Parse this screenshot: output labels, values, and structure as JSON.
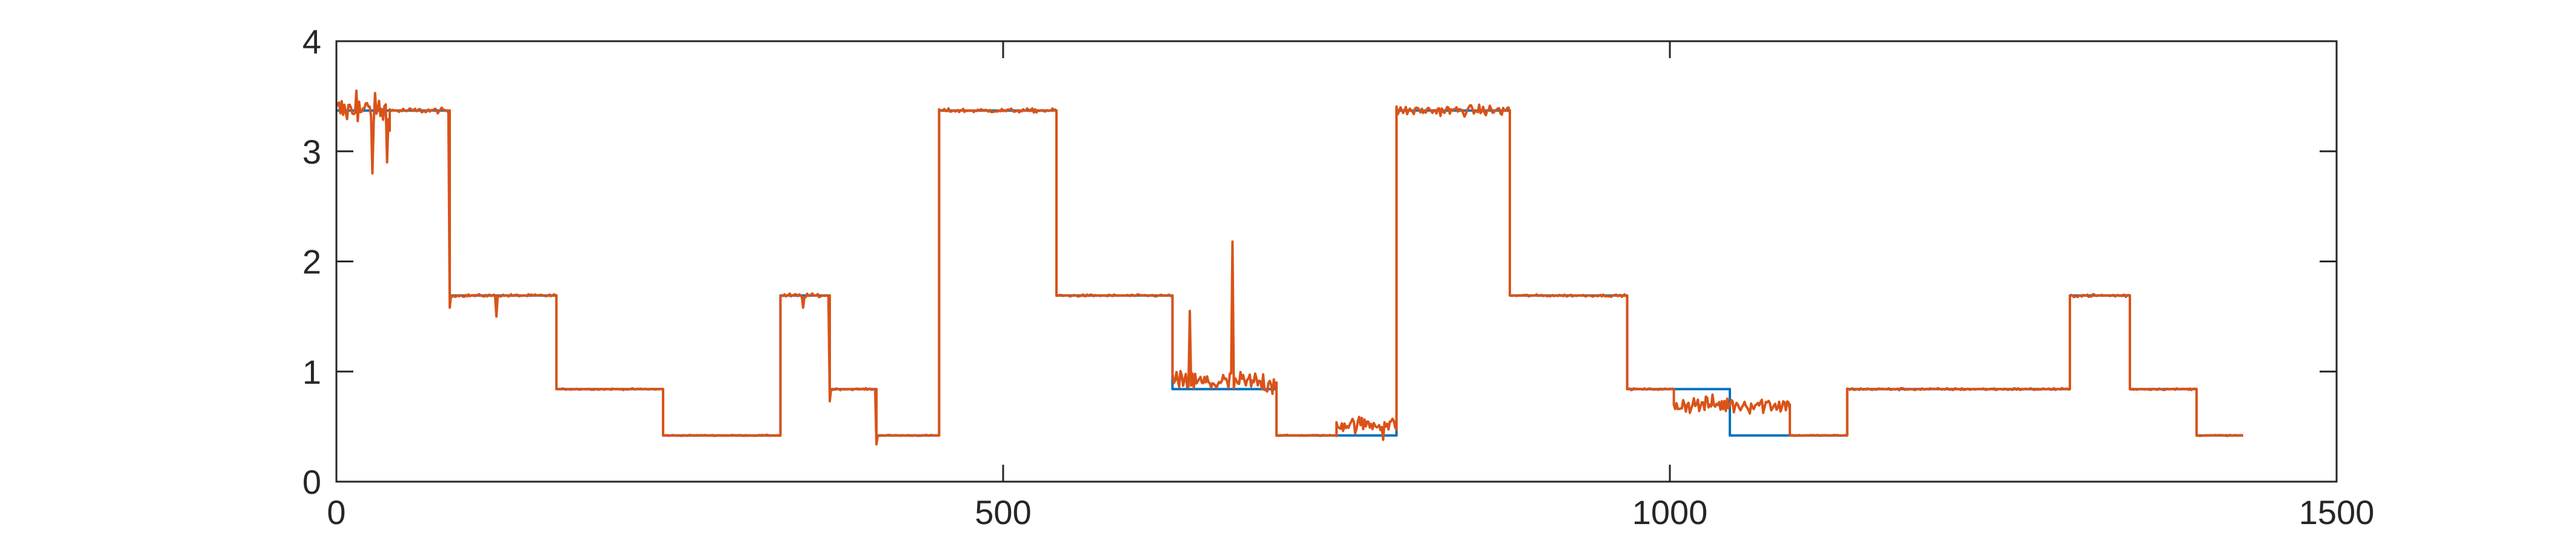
{
  "chart_data": {
    "type": "line",
    "title": "",
    "xlabel": "",
    "ylabel": "",
    "xlim": [
      0,
      1500
    ],
    "ylim": [
      0,
      4
    ],
    "x_ticks": [
      0,
      500,
      1000,
      1500
    ],
    "y_ticks": [
      0,
      1,
      2,
      3,
      4
    ],
    "x_tick_labels": [
      "0",
      "500",
      "1000",
      "1500"
    ],
    "y_tick_labels": [
      "0",
      "1",
      "2",
      "3",
      "4"
    ],
    "grid": false,
    "legend": "none",
    "box": true,
    "series": [
      {
        "color": "#0072BD",
        "style": "step",
        "x": [
          0,
          85,
          85,
          165,
          165,
          245,
          245,
          333,
          333,
          370,
          370,
          405,
          405,
          452,
          452,
          540,
          540,
          627,
          627,
          705,
          705,
          750,
          750,
          795,
          795,
          880,
          880,
          968,
          968,
          1045,
          1045,
          1090,
          1090,
          1133,
          1133,
          1300,
          1300,
          1345,
          1345,
          1395,
          1395,
          1430
        ],
        "y": [
          3.37,
          3.37,
          1.69,
          1.69,
          0.84,
          0.84,
          0.42,
          0.42,
          1.69,
          1.69,
          0.84,
          0.84,
          0.42,
          0.42,
          3.37,
          3.37,
          1.69,
          1.69,
          0.84,
          0.84,
          0.42,
          0.42,
          0.42,
          0.42,
          3.37,
          3.37,
          1.69,
          1.69,
          0.84,
          0.84,
          0.42,
          0.42,
          0.42,
          0.42,
          0.84,
          0.84,
          1.69,
          1.69,
          0.84,
          0.84,
          0.42,
          0.42
        ]
      },
      {
        "color": "#D95319",
        "style": "noisy",
        "segments": [
          {
            "x0": 0,
            "x1": 40,
            "level": 3.37,
            "noise": 0.12
          },
          {
            "x0": 40,
            "x1": 85,
            "level": 3.37,
            "noise": 0.02
          },
          {
            "x0": 85,
            "x1": 165,
            "level": 1.69,
            "noise": 0.01
          },
          {
            "x0": 165,
            "x1": 245,
            "level": 0.84,
            "noise": 0.005
          },
          {
            "x0": 245,
            "x1": 333,
            "level": 0.42,
            "noise": 0.004
          },
          {
            "x0": 333,
            "x1": 370,
            "level": 1.69,
            "noise": 0.015
          },
          {
            "x0": 370,
            "x1": 405,
            "level": 0.84,
            "noise": 0.006
          },
          {
            "x0": 405,
            "x1": 452,
            "level": 0.42,
            "noise": 0.004
          },
          {
            "x0": 452,
            "x1": 540,
            "level": 3.37,
            "noise": 0.015
          },
          {
            "x0": 540,
            "x1": 627,
            "level": 1.69,
            "noise": 0.008
          },
          {
            "x0": 627,
            "x1": 705,
            "level": 0.9,
            "noise": 0.09
          },
          {
            "x0": 705,
            "x1": 750,
            "level": 0.42,
            "noise": 0.004
          },
          {
            "x0": 750,
            "x1": 795,
            "level": 0.52,
            "noise": 0.06
          },
          {
            "x0": 795,
            "x1": 880,
            "level": 3.37,
            "noise": 0.04
          },
          {
            "x0": 880,
            "x1": 968,
            "level": 1.69,
            "noise": 0.008
          },
          {
            "x0": 968,
            "x1": 1003,
            "level": 0.84,
            "noise": 0.006
          },
          {
            "x0": 1003,
            "x1": 1090,
            "level": 0.7,
            "noise": 0.07
          },
          {
            "x0": 1090,
            "x1": 1133,
            "level": 0.42,
            "noise": 0.004
          },
          {
            "x0": 1133,
            "x1": 1300,
            "level": 0.84,
            "noise": 0.008
          },
          {
            "x0": 1300,
            "x1": 1345,
            "level": 1.69,
            "noise": 0.012
          },
          {
            "x0": 1345,
            "x1": 1395,
            "level": 0.84,
            "noise": 0.006
          },
          {
            "x0": 1395,
            "x1": 1430,
            "level": 0.42,
            "noise": 0.004
          }
        ],
        "spikes": [
          {
            "x": 27,
            "y": 2.8
          },
          {
            "x": 38,
            "y": 2.9
          },
          {
            "x": 15,
            "y": 3.55
          },
          {
            "x": 85,
            "y": 1.58
          },
          {
            "x": 120,
            "y": 1.5
          },
          {
            "x": 350,
            "y": 1.58
          },
          {
            "x": 370,
            "y": 0.73
          },
          {
            "x": 405,
            "y": 0.34
          },
          {
            "x": 672,
            "y": 2.18
          },
          {
            "x": 640,
            "y": 1.55
          },
          {
            "x": 785,
            "y": 0.38
          }
        ]
      }
    ]
  }
}
